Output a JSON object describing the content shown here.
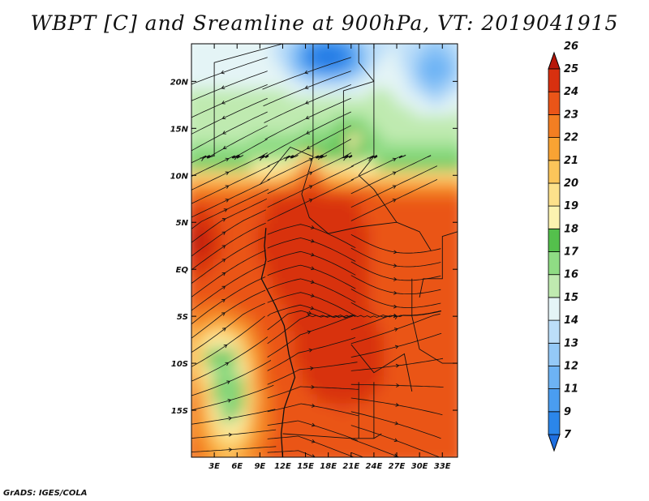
{
  "chart_data": {
    "type": "heatmap",
    "title": "WBPT [C] and Sreamline at 900hPa, VT: 2019041915",
    "variable": "WBPT [C]",
    "overlay": "Streamline",
    "level": "900hPa",
    "valid_time": "2019041915",
    "xlim": [
      0,
      35
    ],
    "ylim": [
      -20,
      24
    ],
    "x_ticks": [
      {
        "value": 3,
        "label": "3E"
      },
      {
        "value": 6,
        "label": "6E"
      },
      {
        "value": 9,
        "label": "9E"
      },
      {
        "value": 12,
        "label": "12E"
      },
      {
        "value": 15,
        "label": "15E"
      },
      {
        "value": 18,
        "label": "18E"
      },
      {
        "value": 21,
        "label": "21E"
      },
      {
        "value": 24,
        "label": "24E"
      },
      {
        "value": 27,
        "label": "27E"
      },
      {
        "value": 30,
        "label": "30E"
      },
      {
        "value": 33,
        "label": "33E"
      }
    ],
    "y_ticks": [
      {
        "value": 20,
        "label": "20N"
      },
      {
        "value": 15,
        "label": "15N"
      },
      {
        "value": 10,
        "label": "10N"
      },
      {
        "value": 5,
        "label": "5N"
      },
      {
        "value": 0,
        "label": "EQ"
      },
      {
        "value": -5,
        "label": "5S"
      },
      {
        "value": -10,
        "label": "10S"
      },
      {
        "value": -15,
        "label": "15S"
      }
    ],
    "colorbar": {
      "levels": [
        "7",
        "9",
        "11",
        "12",
        "13",
        "14",
        "15",
        "16",
        "17",
        "18",
        "19",
        "20",
        "21",
        "22",
        "23",
        "24",
        "25",
        "26"
      ],
      "colors": [
        "#1e6fe0",
        "#2b86ea",
        "#4a9df0",
        "#6db3f4",
        "#94c9f7",
        "#bcdef9",
        "#e4f4f6",
        "#bfeab0",
        "#8fdc84",
        "#54c04c",
        "#fcf3b0",
        "#fde18b",
        "#fbc55a",
        "#f9a333",
        "#f37e22",
        "#ea5518",
        "#d8300f",
        "#b81709"
      ]
    }
  },
  "footer": "GrADS: IGES/COLA"
}
